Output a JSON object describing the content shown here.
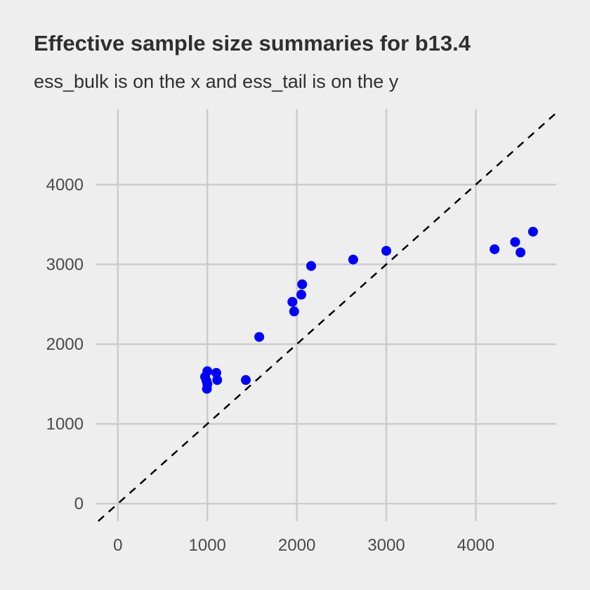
{
  "chart_data": {
    "type": "scatter",
    "title": "Effective sample size summaries for b13.4",
    "subtitle": "ess_bulk is on the x and ess_tail is on the y",
    "xlabel": "",
    "ylabel": "",
    "xlim": [
      -250,
      4900
    ],
    "ylim": [
      -220,
      4950
    ],
    "x_ticks": [
      0,
      1000,
      2000,
      3000,
      4000
    ],
    "y_ticks": [
      0,
      1000,
      2000,
      3000,
      4000
    ],
    "x_tick_labels": [
      "0",
      "1000",
      "2000",
      "3000",
      "4000"
    ],
    "y_tick_labels": [
      "0",
      "1000",
      "2000",
      "3000",
      "4000"
    ],
    "grid": true,
    "reference_line": {
      "slope": 1,
      "intercept": 0,
      "style": "dashed",
      "color": "#000000"
    },
    "point_color": "#0000ff",
    "panel_background": "#eeeeee",
    "grid_color": "#cccccc",
    "points": [
      {
        "x": 1000,
        "y": 1660
      },
      {
        "x": 975,
        "y": 1590
      },
      {
        "x": 990,
        "y": 1540
      },
      {
        "x": 1000,
        "y": 1500
      },
      {
        "x": 995,
        "y": 1440
      },
      {
        "x": 1100,
        "y": 1640
      },
      {
        "x": 1110,
        "y": 1550
      },
      {
        "x": 1430,
        "y": 1550
      },
      {
        "x": 1580,
        "y": 2090
      },
      {
        "x": 1950,
        "y": 2530
      },
      {
        "x": 1970,
        "y": 2410
      },
      {
        "x": 2050,
        "y": 2620
      },
      {
        "x": 2060,
        "y": 2750
      },
      {
        "x": 2160,
        "y": 2980
      },
      {
        "x": 2630,
        "y": 3060
      },
      {
        "x": 3000,
        "y": 3170
      },
      {
        "x": 4210,
        "y": 3190
      },
      {
        "x": 4440,
        "y": 3280
      },
      {
        "x": 4500,
        "y": 3150
      },
      {
        "x": 4640,
        "y": 3410
      }
    ]
  }
}
